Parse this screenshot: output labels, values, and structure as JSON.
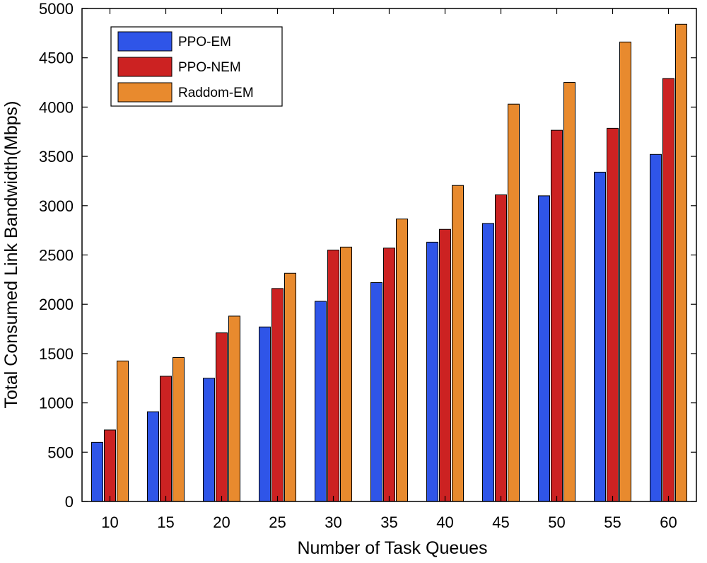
{
  "chart_data": {
    "type": "bar",
    "title": "",
    "xlabel": "Number of Task Queues",
    "ylabel": "Total Consumed Link Bandwidth(Mbps)",
    "categories": [
      "10",
      "15",
      "20",
      "25",
      "30",
      "35",
      "40",
      "45",
      "50",
      "55",
      "60"
    ],
    "ylim": [
      0,
      5000
    ],
    "yticks": [
      "0",
      "500",
      "1000",
      "1500",
      "2000",
      "2500",
      "3000",
      "3500",
      "4000",
      "4500",
      "5000"
    ],
    "grid": false,
    "legend_position": "top-left",
    "series": [
      {
        "name": "PPO-EM",
        "color": "#2f55e8",
        "values": [
          600,
          910,
          1250,
          1770,
          2030,
          2220,
          2630,
          2820,
          3100,
          3340,
          3520
        ]
      },
      {
        "name": "PPO-NEM",
        "color": "#cc2222",
        "values": [
          725,
          1270,
          1710,
          2160,
          2550,
          2570,
          2760,
          3110,
          3765,
          3785,
          4290
        ]
      },
      {
        "name": "Raddom-EM",
        "color": "#e88a2e",
        "values": [
          1425,
          1460,
          1880,
          2315,
          2580,
          2865,
          3205,
          4030,
          4250,
          4660,
          4840
        ]
      }
    ]
  }
}
